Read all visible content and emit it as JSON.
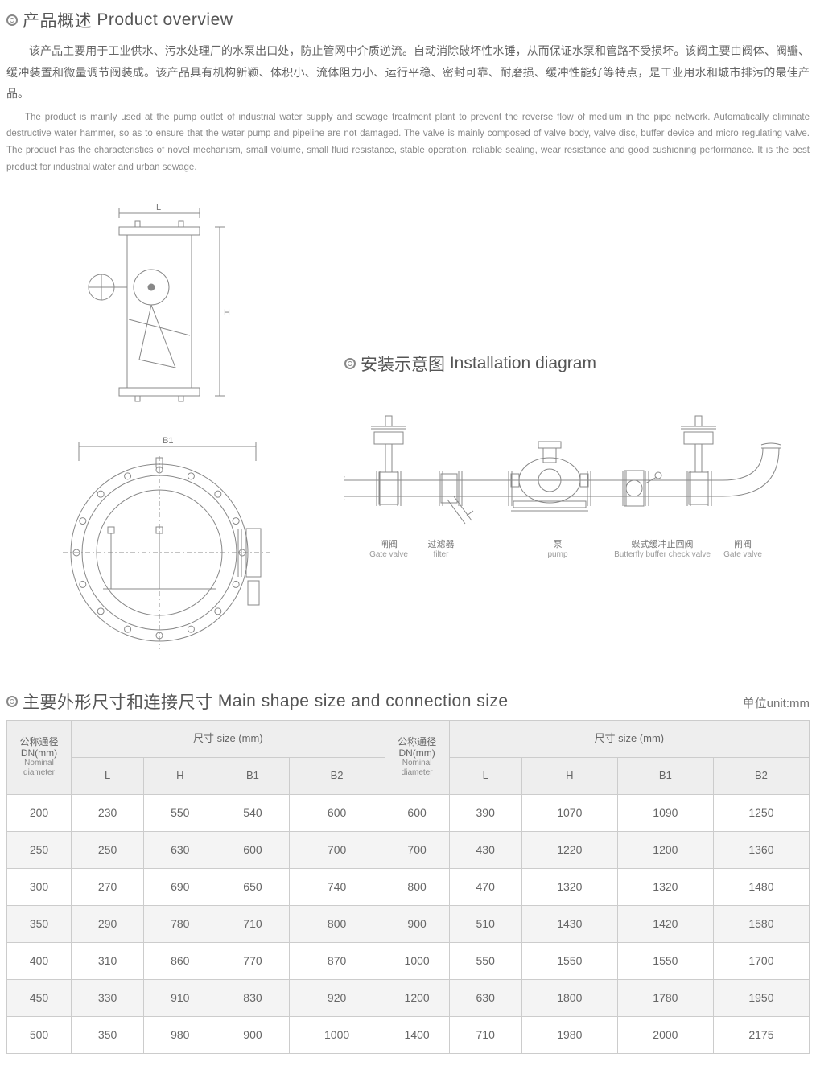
{
  "overview": {
    "title": "◎产品概述 Product overview",
    "title_cn": "产品概述",
    "title_en": "Product overview",
    "para_cn": "该产品主要用于工业供水、污水处理厂的水泵出口处，防止管网中介质逆流。自动消除破坏性水锤，从而保证水泵和管路不受损坏。该阀主要由阀体、阀瓣、缓冲装置和微量调节阀装成。该产品具有机构新颖、体积小、流体阻力小、运行平稳、密封可靠、耐磨损、缓冲性能好等特点，是工业用水和城市排污的最佳产品。",
    "para_en": "The product is mainly used at the pump outlet of industrial water supply and sewage treatment plant to prevent the reverse flow of medium in the pipe network. Automatically eliminate destructive water hammer, so as to ensure that the water pump and pipeline are not damaged. The valve is mainly composed of valve body, valve disc, buffer device and micro regulating valve. The product has the characteristics of novel mechanism, small volume, small fluid resistance, stable operation, reliable sealing, wear resistance and good cushioning performance. It is the best product for industrial water and urban sewage."
  },
  "install": {
    "title_cn": "安装示意图",
    "title_en": "Installation diagram",
    "labels": {
      "gate_valve_cn": "闸阀",
      "gate_valve_en": "Gate valve",
      "filter_cn": "过滤器",
      "filter_en": "filter",
      "pump_cn": "泵",
      "pump_en": "pump",
      "check_cn": "蝶式缓冲止回阀",
      "check_en": "Butterfly buffer check valve"
    }
  },
  "dim_labels": {
    "L": "L",
    "H": "H",
    "B1": "B1"
  },
  "size_table": {
    "title_cn": "主要外形尺寸和连接尺寸",
    "title_en": "Main shape size and connection size",
    "unit": "单位unit:mm",
    "header_dn_cn": "公称通径",
    "header_dn_mm": "DN(mm)",
    "header_dn_en": "Nominal diameter",
    "header_size": "尺寸 size (mm)",
    "cols": [
      "L",
      "H",
      "B1",
      "B2"
    ],
    "rows": [
      {
        "dn": "200",
        "L": "230",
        "H": "550",
        "B1": "540",
        "B2": "600",
        "dn2": "600",
        "L2": "390",
        "H2": "1070",
        "B12": "1090",
        "B22": "1250"
      },
      {
        "dn": "250",
        "L": "250",
        "H": "630",
        "B1": "600",
        "B2": "700",
        "dn2": "700",
        "L2": "430",
        "H2": "1220",
        "B12": "1200",
        "B22": "1360"
      },
      {
        "dn": "300",
        "L": "270",
        "H": "690",
        "B1": "650",
        "B2": "740",
        "dn2": "800",
        "L2": "470",
        "H2": "1320",
        "B12": "1320",
        "B22": "1480"
      },
      {
        "dn": "350",
        "L": "290",
        "H": "780",
        "B1": "710",
        "B2": "800",
        "dn2": "900",
        "L2": "510",
        "H2": "1430",
        "B12": "1420",
        "B22": "1580"
      },
      {
        "dn": "400",
        "L": "310",
        "H": "860",
        "B1": "770",
        "B2": "870",
        "dn2": "1000",
        "L2": "550",
        "H2": "1550",
        "B12": "1550",
        "B22": "1700"
      },
      {
        "dn": "450",
        "L": "330",
        "H": "910",
        "B1": "830",
        "B2": "920",
        "dn2": "1200",
        "L2": "630",
        "H2": "1800",
        "B12": "1780",
        "B22": "1950"
      },
      {
        "dn": "500",
        "L": "350",
        "H": "980",
        "B1": "900",
        "B2": "1000",
        "dn2": "1400",
        "L2": "710",
        "H2": "1980",
        "B12": "2000",
        "B22": "2175"
      }
    ]
  },
  "style": {
    "stroke": "#888",
    "stroke_fine": "#999",
    "table_border": "#ccc",
    "header_bg": "#eee",
    "row_alt_bg": "#f4f4f4",
    "text_color": "#555"
  }
}
